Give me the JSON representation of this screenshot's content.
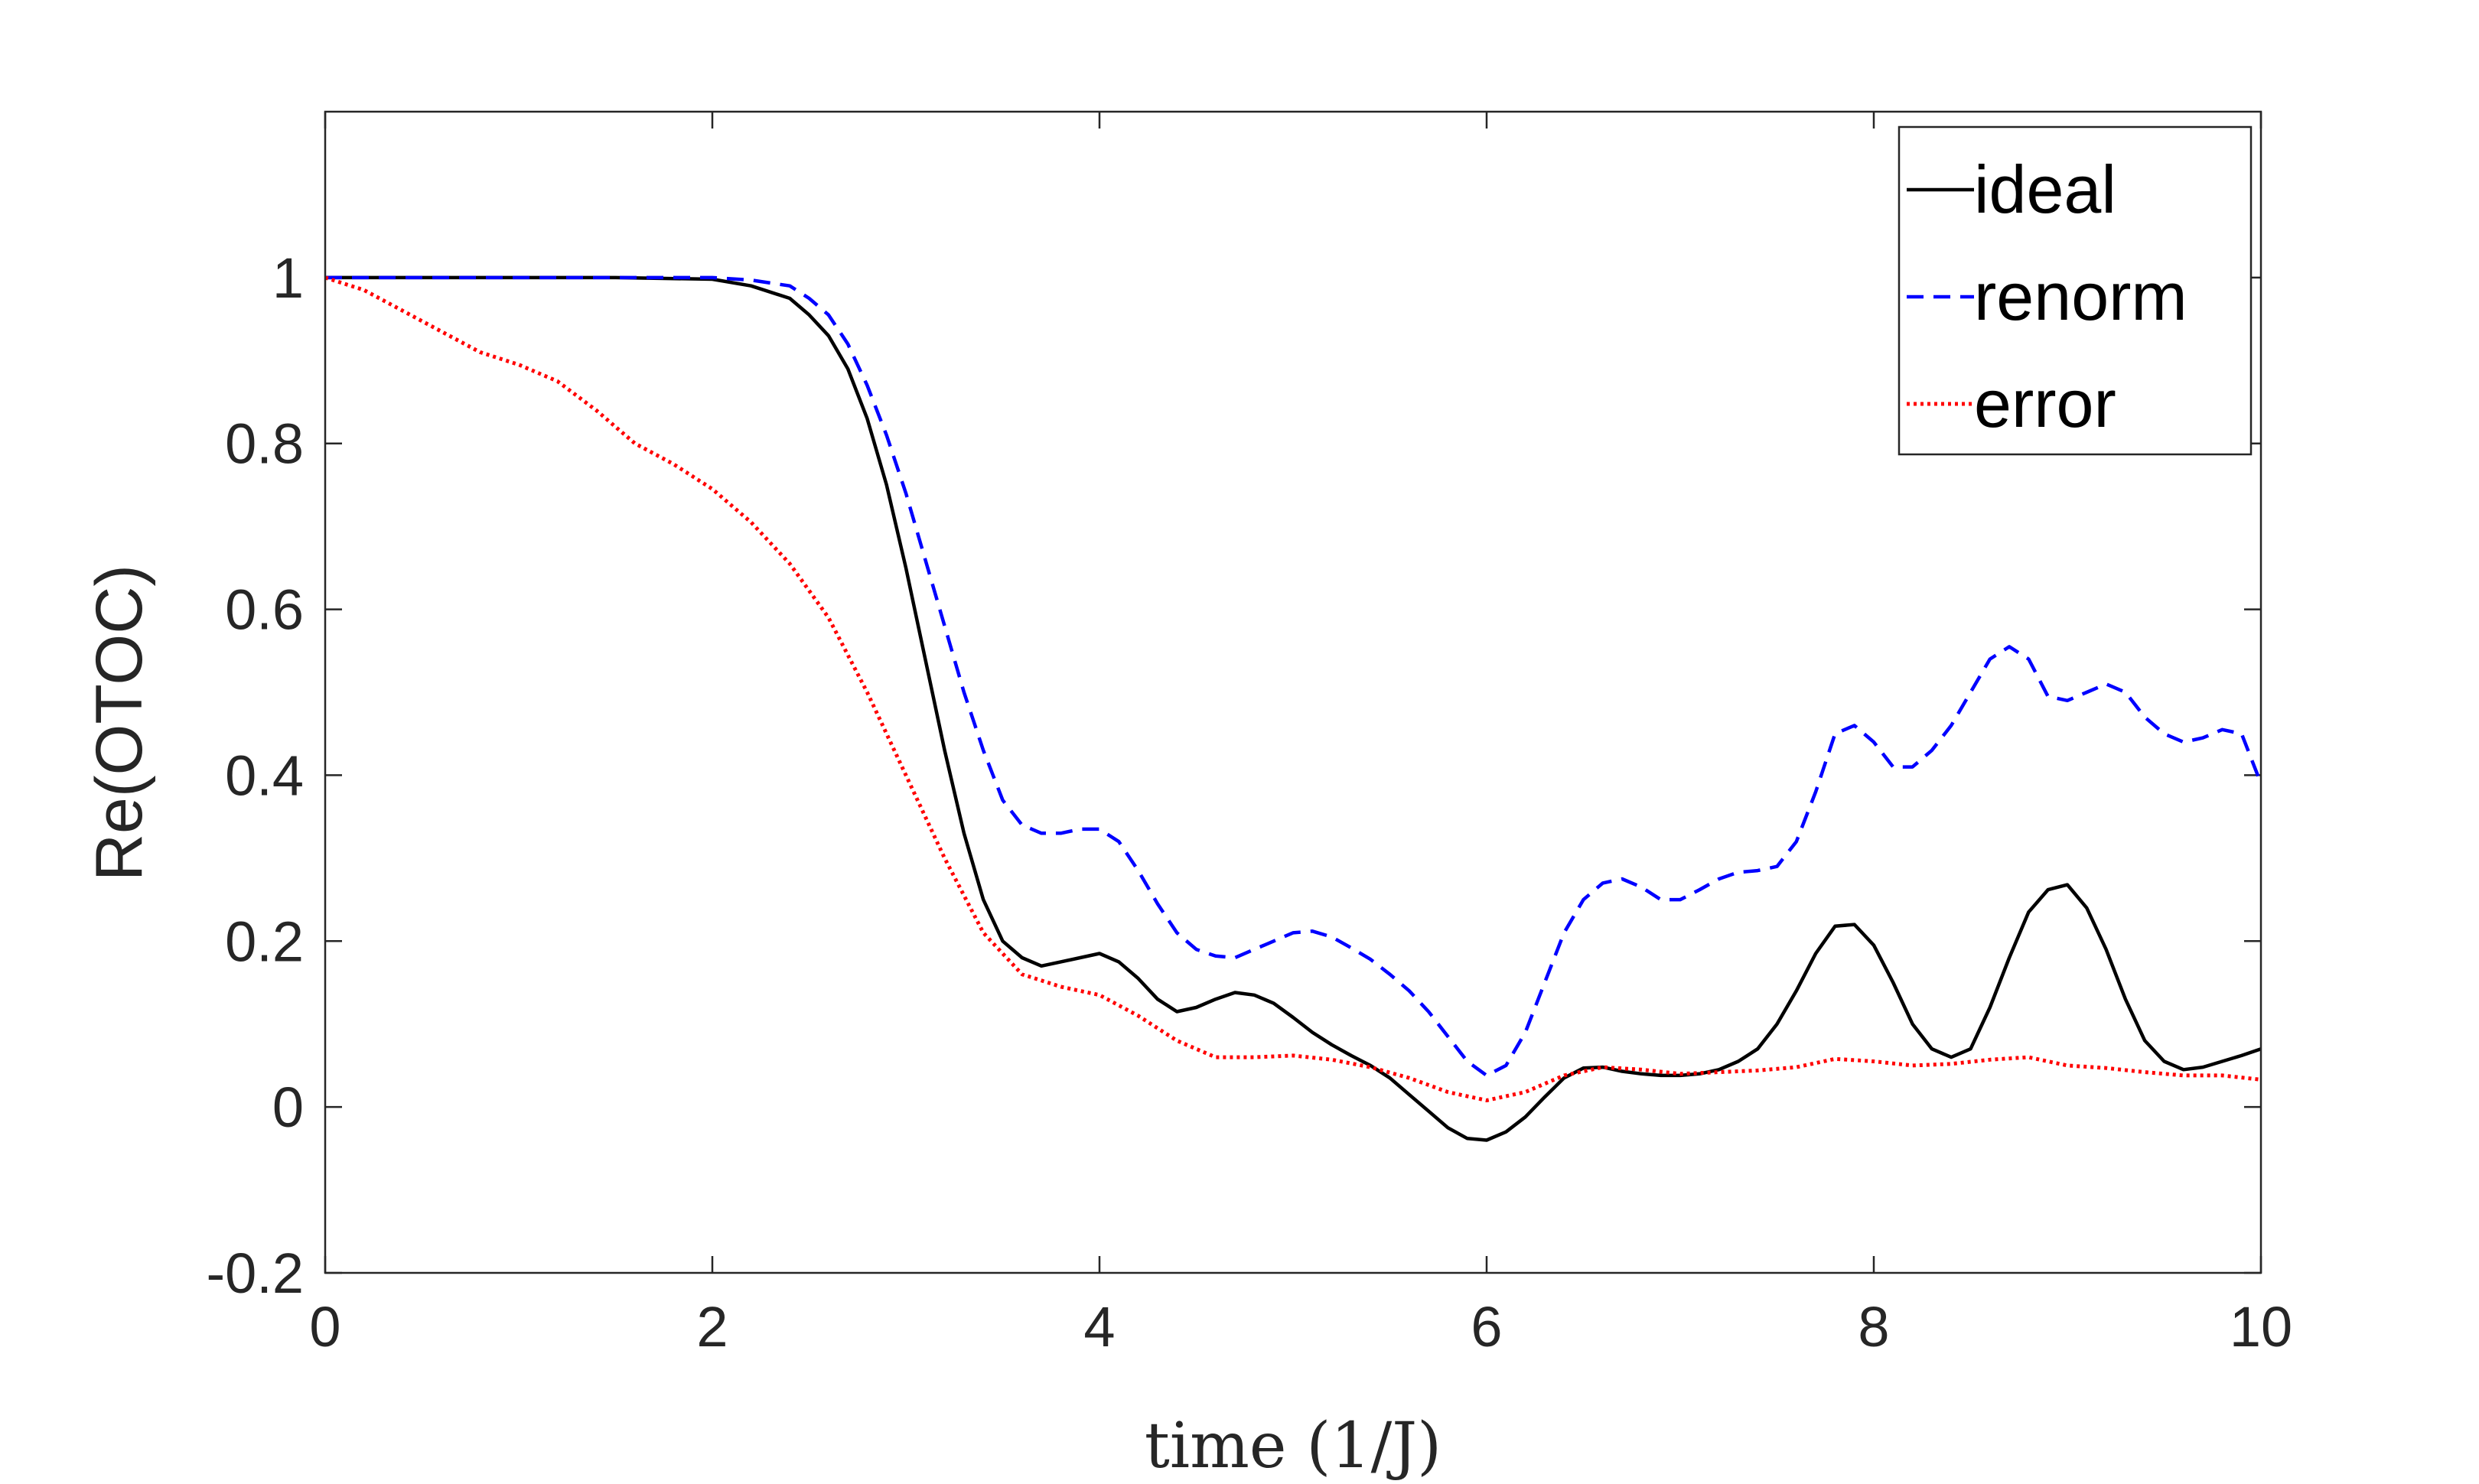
{
  "chart_data": {
    "type": "line",
    "xlabel": "time (1/J)",
    "ylabel": "Re(OTOC)",
    "xlim": [
      0,
      10
    ],
    "ylim": [
      -0.2,
      1.2
    ],
    "xticks": [
      "0",
      "2",
      "4",
      "6",
      "8",
      "10"
    ],
    "yticks": [
      "-0.2",
      "0",
      "0.2",
      "0.4",
      "0.6",
      "0.8",
      "1"
    ],
    "grid": false,
    "legend_position": "top-right",
    "series": [
      {
        "name": "ideal",
        "color": "#000000",
        "style": "solid",
        "x": [
          0,
          0.5,
          1,
          1.5,
          2,
          2.2,
          2.4,
          2.5,
          2.6,
          2.7,
          2.8,
          2.9,
          3.0,
          3.1,
          3.2,
          3.3,
          3.4,
          3.5,
          3.6,
          3.7,
          3.8,
          3.9,
          4.0,
          4.1,
          4.2,
          4.3,
          4.4,
          4.5,
          4.6,
          4.7,
          4.8,
          4.9,
          5.0,
          5.1,
          5.2,
          5.3,
          5.4,
          5.5,
          5.6,
          5.7,
          5.8,
          5.9,
          6.0,
          6.1,
          6.2,
          6.3,
          6.4,
          6.5,
          6.6,
          6.7,
          6.8,
          6.9,
          7.0,
          7.1,
          7.2,
          7.3,
          7.4,
          7.5,
          7.6,
          7.7,
          7.8,
          7.9,
          8.0,
          8.1,
          8.2,
          8.3,
          8.4,
          8.5,
          8.6,
          8.7,
          8.8,
          8.9,
          9.0,
          9.1,
          9.2,
          9.3,
          9.4,
          9.5,
          9.6,
          9.7,
          9.8,
          9.9,
          10.0
        ],
        "y": [
          1.0,
          1.0,
          1.0,
          1.0,
          0.998,
          0.99,
          0.975,
          0.955,
          0.93,
          0.89,
          0.83,
          0.75,
          0.65,
          0.54,
          0.43,
          0.33,
          0.25,
          0.2,
          0.18,
          0.17,
          0.175,
          0.18,
          0.185,
          0.175,
          0.155,
          0.13,
          0.115,
          0.12,
          0.13,
          0.138,
          0.135,
          0.125,
          0.108,
          0.09,
          0.075,
          0.062,
          0.05,
          0.035,
          0.015,
          -0.005,
          -0.025,
          -0.038,
          -0.04,
          -0.03,
          -0.012,
          0.012,
          0.035,
          0.047,
          0.048,
          0.043,
          0.04,
          0.038,
          0.038,
          0.04,
          0.045,
          0.055,
          0.07,
          0.1,
          0.14,
          0.185,
          0.218,
          0.22,
          0.195,
          0.15,
          0.1,
          0.07,
          0.06,
          0.07,
          0.12,
          0.18,
          0.235,
          0.262,
          0.268,
          0.24,
          0.19,
          0.13,
          0.08,
          0.055,
          0.045,
          0.048,
          0.055,
          0.062,
          0.07
        ]
      },
      {
        "name": "renorm",
        "color": "#0000ff",
        "style": "dashed",
        "x": [
          0,
          0.5,
          1,
          1.5,
          2,
          2.2,
          2.4,
          2.5,
          2.6,
          2.7,
          2.8,
          2.9,
          3.0,
          3.1,
          3.2,
          3.3,
          3.4,
          3.5,
          3.6,
          3.7,
          3.8,
          3.9,
          4.0,
          4.1,
          4.2,
          4.3,
          4.4,
          4.5,
          4.6,
          4.7,
          4.8,
          4.9,
          5.0,
          5.1,
          5.2,
          5.3,
          5.4,
          5.5,
          5.6,
          5.7,
          5.8,
          5.9,
          6.0,
          6.1,
          6.2,
          6.3,
          6.4,
          6.5,
          6.6,
          6.7,
          6.8,
          6.9,
          7.0,
          7.1,
          7.2,
          7.3,
          7.4,
          7.5,
          7.6,
          7.7,
          7.8,
          7.9,
          8.0,
          8.1,
          8.2,
          8.3,
          8.4,
          8.5,
          8.6,
          8.7,
          8.8,
          8.9,
          9.0,
          9.1,
          9.2,
          9.3,
          9.4,
          9.5,
          9.6,
          9.7,
          9.8,
          9.9,
          10.0
        ],
        "y": [
          1.0,
          1.0,
          1.0,
          1.0,
          1.0,
          0.997,
          0.99,
          0.975,
          0.955,
          0.92,
          0.87,
          0.81,
          0.74,
          0.66,
          0.58,
          0.5,
          0.43,
          0.37,
          0.34,
          0.33,
          0.33,
          0.335,
          0.335,
          0.32,
          0.285,
          0.245,
          0.21,
          0.19,
          0.182,
          0.18,
          0.19,
          0.2,
          0.21,
          0.212,
          0.205,
          0.192,
          0.178,
          0.16,
          0.14,
          0.115,
          0.085,
          0.055,
          0.038,
          0.05,
          0.09,
          0.15,
          0.21,
          0.25,
          0.27,
          0.275,
          0.265,
          0.25,
          0.25,
          0.262,
          0.275,
          0.283,
          0.285,
          0.29,
          0.32,
          0.38,
          0.45,
          0.46,
          0.44,
          0.41,
          0.41,
          0.43,
          0.46,
          0.5,
          0.54,
          0.555,
          0.54,
          0.495,
          0.49,
          0.5,
          0.51,
          0.5,
          0.47,
          0.45,
          0.44,
          0.445,
          0.455,
          0.45,
          0.39
        ]
      },
      {
        "name": "error",
        "color": "#ff0000",
        "style": "dotted",
        "x": [
          0,
          0.2,
          0.4,
          0.6,
          0.8,
          1.0,
          1.2,
          1.4,
          1.6,
          1.8,
          2.0,
          2.2,
          2.4,
          2.6,
          2.8,
          3.0,
          3.2,
          3.4,
          3.6,
          3.8,
          4.0,
          4.2,
          4.4,
          4.6,
          4.8,
          5.0,
          5.2,
          5.4,
          5.6,
          5.8,
          6.0,
          6.2,
          6.4,
          6.6,
          6.8,
          7.0,
          7.2,
          7.4,
          7.6,
          7.8,
          8.0,
          8.2,
          8.4,
          8.6,
          8.8,
          9.0,
          9.2,
          9.4,
          9.6,
          9.8,
          10.0
        ],
        "y": [
          1.0,
          0.985,
          0.96,
          0.935,
          0.91,
          0.895,
          0.875,
          0.84,
          0.8,
          0.775,
          0.745,
          0.705,
          0.655,
          0.59,
          0.5,
          0.4,
          0.3,
          0.21,
          0.16,
          0.145,
          0.135,
          0.11,
          0.08,
          0.06,
          0.06,
          0.062,
          0.057,
          0.048,
          0.035,
          0.018,
          0.008,
          0.018,
          0.038,
          0.048,
          0.045,
          0.04,
          0.042,
          0.044,
          0.048,
          0.058,
          0.055,
          0.05,
          0.052,
          0.057,
          0.06,
          0.05,
          0.047,
          0.042,
          0.038,
          0.038,
          0.033
        ]
      }
    ]
  }
}
